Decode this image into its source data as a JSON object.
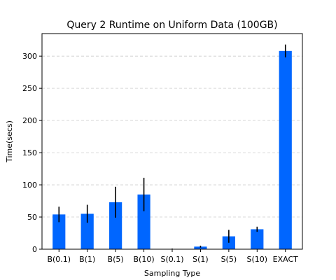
{
  "chart_data": {
    "type": "bar",
    "title": "Query 2 Runtime on Uniform Data (100GB)",
    "xlabel": "Sampling Type",
    "ylabel": "Time(secs)",
    "categories": [
      "B(0.1)",
      "B(1)",
      "B(5)",
      "B(10)",
      "S(0.1)",
      "S(1)",
      "S(5)",
      "S(10)",
      "EXACT"
    ],
    "values": [
      54,
      55,
      73,
      85,
      0.5,
      4,
      20,
      31,
      308
    ],
    "error": [
      12,
      14,
      24,
      26,
      0.5,
      1.5,
      10,
      4,
      10
    ],
    "ylim": [
      0,
      335
    ],
    "yticks": [
      0,
      50,
      100,
      150,
      200,
      250,
      300
    ],
    "grid": true,
    "grid_axis": "y",
    "bar_color": "#0066ff",
    "error_color": "#000000"
  }
}
